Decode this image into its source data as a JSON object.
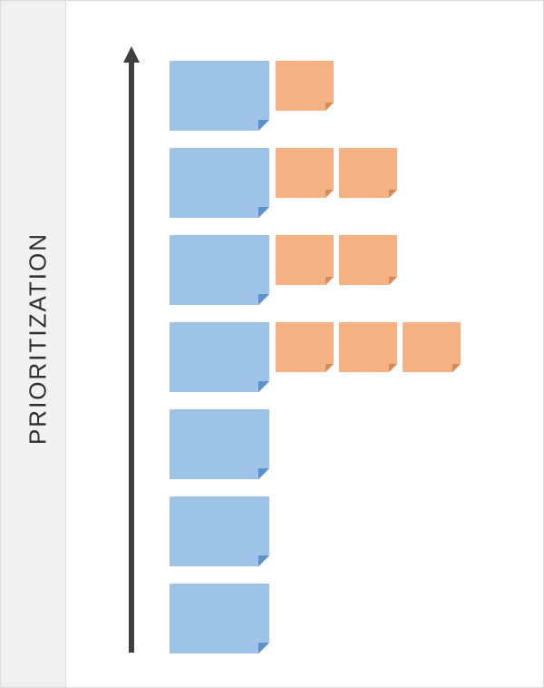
{
  "side_label": "PRIORITIZATION",
  "axis": {
    "direction": "up",
    "meaning": "priority"
  },
  "colors": {
    "panel_bg": "#f1f1f1",
    "arrow": "#3f3f3f",
    "blue_note": "#9dc3e6",
    "orange_note": "#f4b183",
    "label_text": "#2f2f2f"
  },
  "rows": [
    {
      "blue_notes": 1,
      "orange_notes": 1
    },
    {
      "blue_notes": 1,
      "orange_notes": 2
    },
    {
      "blue_notes": 1,
      "orange_notes": 2
    },
    {
      "blue_notes": 1,
      "orange_notes": 3
    },
    {
      "blue_notes": 1,
      "orange_notes": 0
    },
    {
      "blue_notes": 1,
      "orange_notes": 0
    },
    {
      "blue_notes": 1,
      "orange_notes": 0
    }
  ]
}
